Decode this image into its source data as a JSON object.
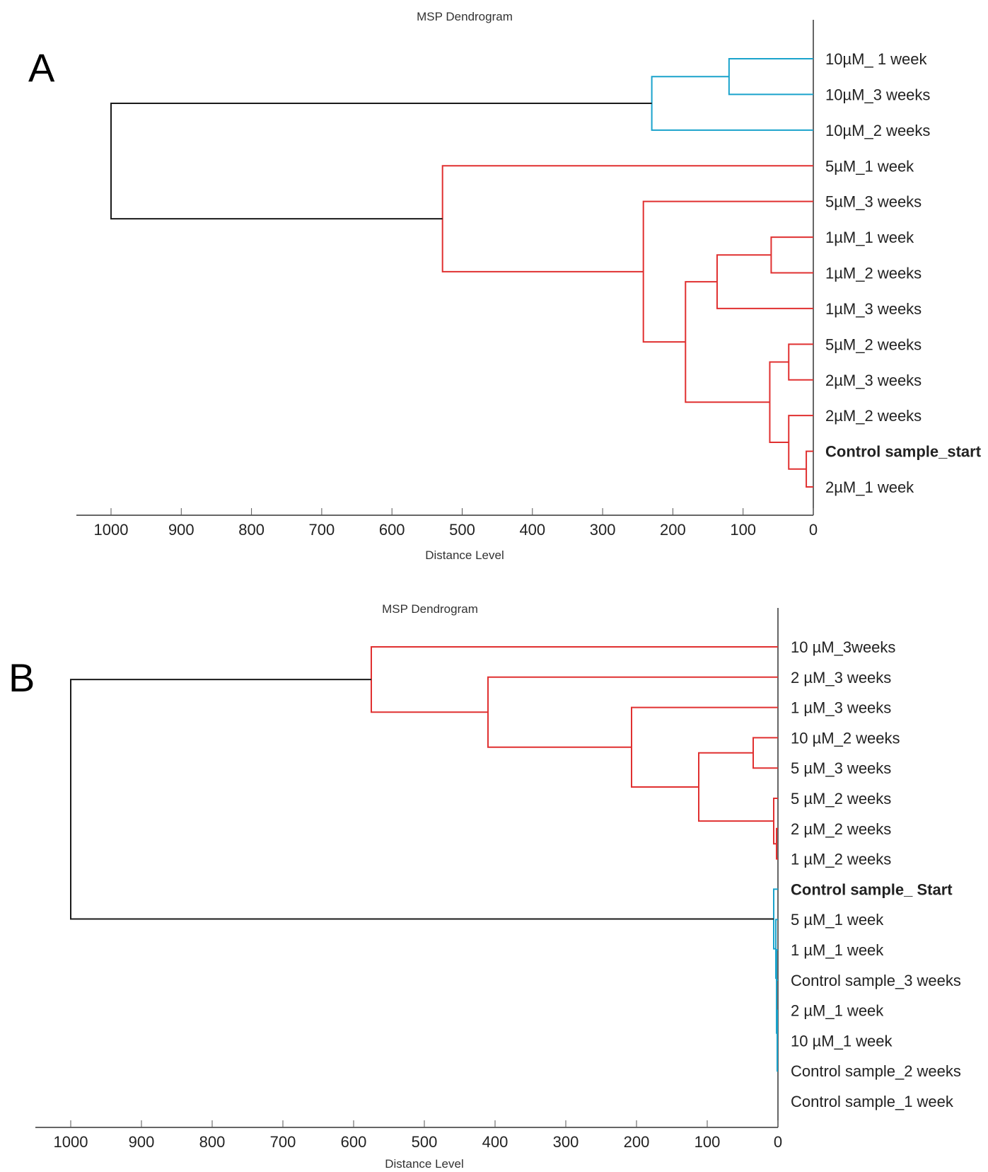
{
  "chart_data": [
    {
      "type": "dendrogram",
      "panel": "A",
      "title": "MSP Dendrogram",
      "xlabel": "Distance Level",
      "xlim": [
        1000,
        0
      ],
      "ticks": [
        "1000",
        "900",
        "800",
        "700",
        "600",
        "500",
        "400",
        "300",
        "200",
        "100",
        "0"
      ],
      "leaves": [
        {
          "label": "10µM_ 1 week",
          "bold": false
        },
        {
          "label": "10µM_3 weeks",
          "bold": false
        },
        {
          "label": "10µM_2 weeks",
          "bold": false
        },
        {
          "label": "5µM_1 week",
          "bold": false
        },
        {
          "label": "5µM_3 weeks",
          "bold": false
        },
        {
          "label": "1µM_1 week",
          "bold": false
        },
        {
          "label": "1µM_2 weeks",
          "bold": false
        },
        {
          "label": "1µM_3 weeks",
          "bold": false
        },
        {
          "label": "5µM_2 weeks",
          "bold": false
        },
        {
          "label": "2µM_3 weeks",
          "bold": false
        },
        {
          "label": "2µM_2 weeks",
          "bold": false
        },
        {
          "label": "Control sample_start",
          "bold": true
        },
        {
          "label": "2µM_1 week",
          "bold": false
        }
      ],
      "merges": [
        {
          "a": 11,
          "b": 12,
          "distance": 10,
          "color": "#e03030"
        },
        {
          "a": 8,
          "b": 9,
          "distance": 35,
          "color": "#e03030"
        },
        {
          "a": 10,
          "b": 13,
          "distance": 35,
          "color": "#e03030"
        },
        {
          "a": 5,
          "b": 6,
          "distance": 60,
          "color": "#e03030"
        },
        {
          "a": 15,
          "b": 14,
          "distance": 62,
          "color": "#e03030"
        },
        {
          "a": 7,
          "b": 16,
          "distance": 137,
          "color": "#e03030"
        },
        {
          "a": 17,
          "b": 18,
          "distance": 182,
          "color": "#e03030"
        },
        {
          "a": 4,
          "b": 19,
          "distance": 242,
          "color": "#e03030"
        },
        {
          "a": 3,
          "b": 20,
          "distance": 528,
          "color": "#e03030"
        },
        {
          "a": 0,
          "b": 1,
          "distance": 120,
          "color": "#1aa3cc"
        },
        {
          "a": 22,
          "b": 2,
          "distance": 230,
          "color": "#1aa3cc"
        },
        {
          "a": 23,
          "b": 21,
          "distance": 1000,
          "color": "#1a1a1a"
        }
      ]
    },
    {
      "type": "dendrogram",
      "panel": "B",
      "title": "MSP Dendrogram",
      "xlabel": "Distance Level",
      "xlim": [
        1000,
        0
      ],
      "ticks": [
        "1000",
        "900",
        "800",
        "700",
        "600",
        "500",
        "400",
        "300",
        "200",
        "100",
        "0"
      ],
      "leaves": [
        {
          "label": "10 µM_3weeks",
          "bold": false
        },
        {
          "label": "2 µM_3 weeks",
          "bold": false
        },
        {
          "label": "1 µM_3 weeks",
          "bold": false
        },
        {
          "label": "10 µM_2 weeks",
          "bold": false
        },
        {
          "label": "5 µM_3 weeks",
          "bold": false
        },
        {
          "label": "5 µM_2 weeks",
          "bold": false
        },
        {
          "label": "2 µM_2 weeks",
          "bold": false
        },
        {
          "label": "1 µM_2 weeks",
          "bold": false
        },
        {
          "label": "Control sample_ Start",
          "bold": true
        },
        {
          "label": "5 µM_1 week",
          "bold": false
        },
        {
          "label": "1 µM_1 week",
          "bold": false
        },
        {
          "label": "Control sample_3 weeks",
          "bold": false
        },
        {
          "label": "2 µM_1 week",
          "bold": false
        },
        {
          "label": "10 µM_1 week",
          "bold": false
        },
        {
          "label": "Control sample_2 weeks",
          "bold": false
        },
        {
          "label": "Control sample_1 week",
          "bold": false
        }
      ],
      "merges": [
        {
          "a": 6,
          "b": 7,
          "distance": 2,
          "color": "#e03030"
        },
        {
          "a": 5,
          "b": 16,
          "distance": 6,
          "color": "#e03030"
        },
        {
          "a": 3,
          "b": 4,
          "distance": 35,
          "color": "#e03030"
        },
        {
          "a": 18,
          "b": 17,
          "distance": 112,
          "color": "#e03030"
        },
        {
          "a": 2,
          "b": 19,
          "distance": 207,
          "color": "#e03030"
        },
        {
          "a": 1,
          "b": 20,
          "distance": 410,
          "color": "#e03030"
        },
        {
          "a": 0,
          "b": 21,
          "distance": 575,
          "color": "#e03030"
        },
        {
          "a": 13,
          "b": 14,
          "distance": 1,
          "color": "#1aa3cc"
        },
        {
          "a": 12,
          "b": 23,
          "distance": 1,
          "color": "#1aa3cc"
        },
        {
          "a": 11,
          "b": 24,
          "distance": 2,
          "color": "#1aa3cc"
        },
        {
          "a": 10,
          "b": 25,
          "distance": 2,
          "color": "#1aa3cc"
        },
        {
          "a": 9,
          "b": 26,
          "distance": 3,
          "color": "#1aa3cc"
        },
        {
          "a": 8,
          "b": 27,
          "distance": 6,
          "color": "#1aa3cc"
        },
        {
          "a": 22,
          "b": 28,
          "distance": 1000,
          "color": "#1a1a1a"
        }
      ]
    }
  ],
  "panel_labels": {
    "a": "A",
    "b": "B"
  }
}
